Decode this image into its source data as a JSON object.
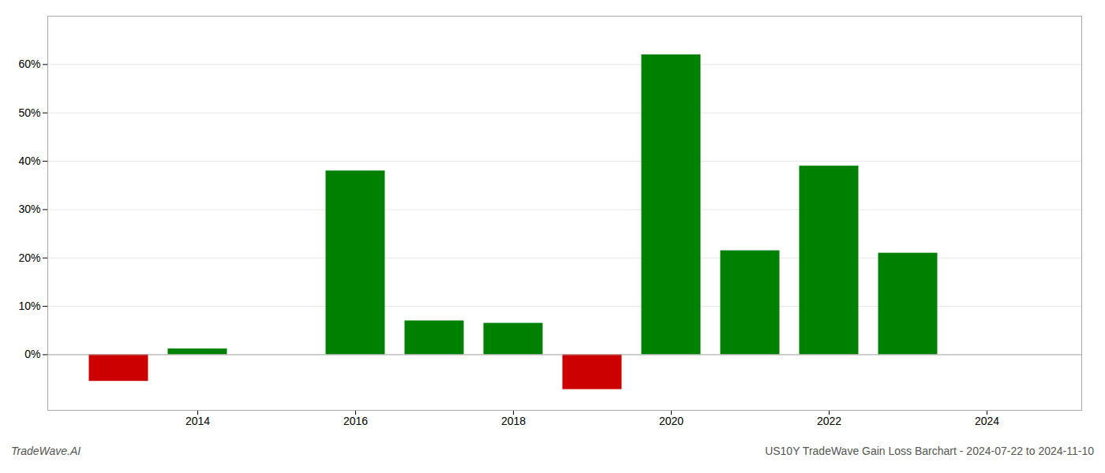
{
  "chart_data": {
    "type": "bar",
    "x": [
      2013,
      2014,
      2015,
      2016,
      2017,
      2018,
      2019,
      2020,
      2021,
      2022,
      2023
    ],
    "values": [
      -0.055,
      0.012,
      0.0,
      0.38,
      0.07,
      0.065,
      -0.072,
      0.62,
      0.215,
      0.39,
      0.21
    ],
    "colors": [
      "#cc0000",
      "#008000",
      "#008000",
      "#008000",
      "#008000",
      "#008000",
      "#cc0000",
      "#008000",
      "#008000",
      "#008000",
      "#008000"
    ],
    "xlim": [
      2012.1,
      2025.2
    ],
    "xticks": [
      2014,
      2016,
      2018,
      2020,
      2022,
      2024
    ],
    "ylim": [
      -0.115,
      0.7
    ],
    "yticks": [
      {
        "value": 0.0,
        "label": "0%"
      },
      {
        "value": 0.1,
        "label": "10%"
      },
      {
        "value": 0.2,
        "label": "20%"
      },
      {
        "value": 0.3,
        "label": "30%"
      },
      {
        "value": 0.4,
        "label": "40%"
      },
      {
        "value": 0.5,
        "label": "50%"
      },
      {
        "value": 0.6,
        "label": "60%"
      }
    ],
    "grid": true,
    "annotations": [
      "TradeWave.AI",
      "US10Y TradeWave Gain Loss Barchart - 2024-07-22 to 2024-11-10"
    ]
  }
}
